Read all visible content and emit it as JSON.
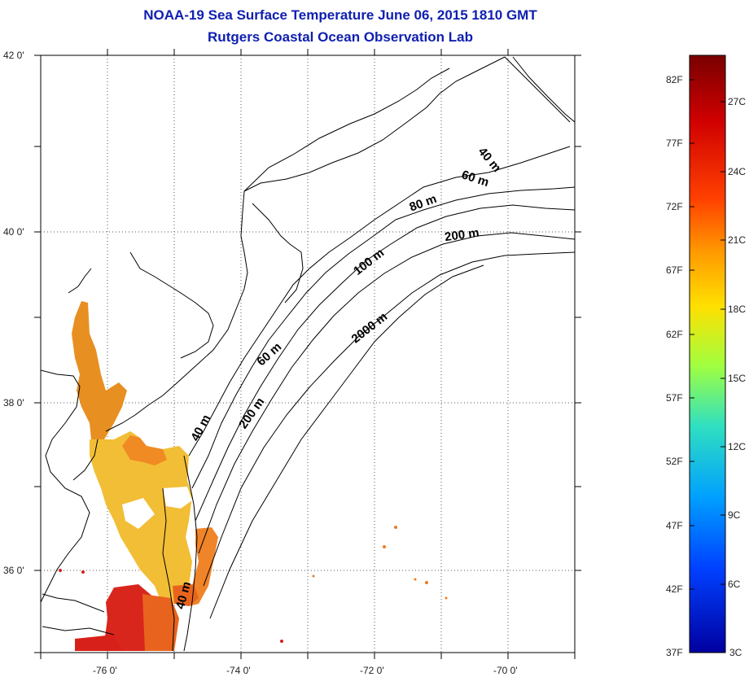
{
  "title_line1": "NOAA-19 Sea Surface Temperature June 06, 2015 1810 GMT",
  "title_line2": "Rutgers Coastal Ocean Observation Lab",
  "lat_labels": [
    "42 0'",
    "40 0'",
    "38 0'",
    "36 0'"
  ],
  "lon_labels": [
    "-76 0'",
    "-74 0'",
    "-72 0'",
    "-70 0'"
  ],
  "contour_labels": [
    "40 m",
    "60 m",
    "80 m",
    "100 m",
    "200 m",
    "2000 m",
    "60 m",
    "40 m",
    "200 m",
    "40 m"
  ],
  "colorbar": {
    "fahrenheit": [
      "82F",
      "77F",
      "72F",
      "67F",
      "62F",
      "57F",
      "52F",
      "47F",
      "42F",
      "37F"
    ],
    "celsius": [
      "27C",
      "24C",
      "21C",
      "18C",
      "15C",
      "12C",
      "9C",
      "6C",
      "3C"
    ],
    "colors": [
      "#7a0000",
      "#d00000",
      "#ff4000",
      "#ff9a00",
      "#ffe000",
      "#a0ff40",
      "#30e0c0",
      "#00a0ff",
      "#0040ff",
      "#0000a0"
    ]
  },
  "map_colors": {
    "sst_warm": "#e8901c",
    "sst_hot": "#d81e1e",
    "sst_mild": "#f5c43a",
    "sst_orange": "#ef7a20"
  }
}
